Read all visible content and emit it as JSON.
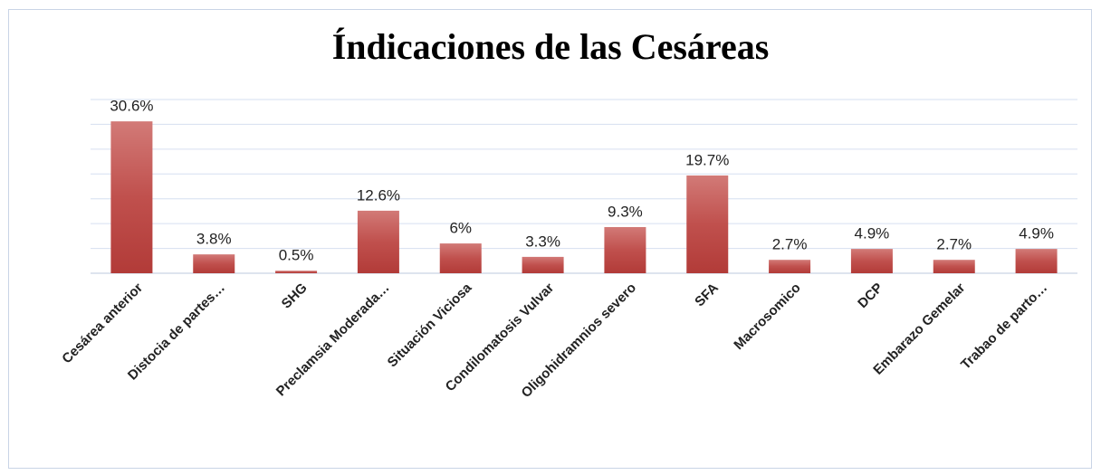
{
  "chart_data": {
    "type": "bar",
    "title": "Índicaciones de las Cesáreas",
    "categories": [
      "Cesárea anterior",
      "Distocia de partes…",
      "SHG",
      "Preclamsia Moderada…",
      "Situación Viciosa",
      "Condilomatosis Vulvar",
      "Oligohidramnios severo",
      "SFA",
      "Macrosomico",
      "DCP",
      "Embarazo Gemelar",
      "Trabao de parto…"
    ],
    "values": [
      30.6,
      3.8,
      0.5,
      12.6,
      6,
      3.3,
      9.3,
      19.7,
      2.7,
      4.9,
      2.7,
      4.9
    ],
    "value_labels": [
      "30.6%",
      "3.8%",
      "0.5%",
      "12.6%",
      "6%",
      "3.3%",
      "9.3%",
      "19.7%",
      "2.7%",
      "4.9%",
      "2.7%",
      "4.9%"
    ],
    "color": "#c0504d",
    "ylim": [
      0,
      35
    ],
    "yticks": [
      0,
      5,
      10,
      15,
      20,
      25,
      30,
      35
    ],
    "grid": true
  }
}
